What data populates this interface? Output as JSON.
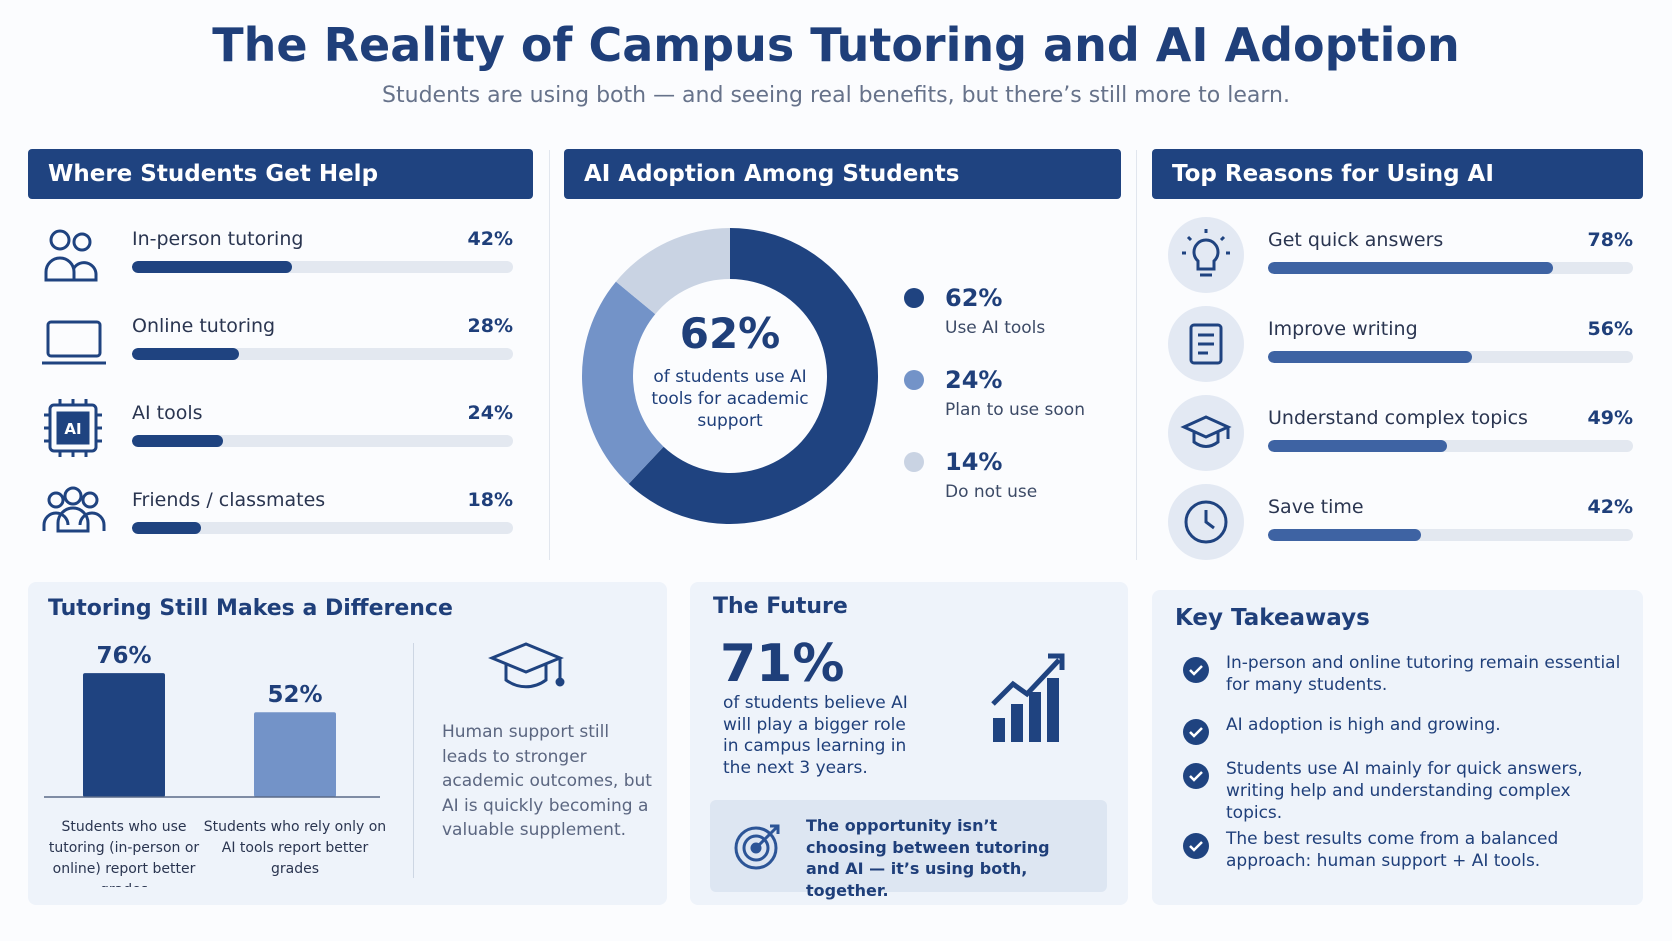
{
  "title": "The Reality of Campus Tutoring and AI Adoption",
  "subtitle": "Students are using both — and seeing real benefits, but there’s still more to learn.",
  "chart_data": [
    {
      "type": "hbar",
      "title": "Where Students Get Help",
      "categories": [
        "In-person tutoring",
        "Online tutoring",
        "AI tools",
        "Friends / classmates"
      ],
      "values": [
        42,
        28,
        24,
        18
      ],
      "value_labels": [
        "42%",
        "28%",
        "24%",
        "18%"
      ],
      "xlim": [
        0,
        100
      ],
      "color": "#1f4380"
    },
    {
      "type": "donut",
      "title": "AI Adoption Among Students",
      "categories": [
        "Use AI tools",
        "Plan to use soon",
        "Do not use"
      ],
      "values": [
        62,
        24,
        14
      ],
      "value_labels": [
        "62%",
        "24%",
        "14%"
      ],
      "colors": [
        "#1f4380",
        "#7393c8",
        "#c9d3e3"
      ],
      "center_text": "of students use AI tools for academic support"
    },
    {
      "type": "hbar",
      "title": "Top Reasons for Using AI",
      "categories": [
        "Get quick answers",
        "Improve writing",
        "Understand complex topics",
        "Save time"
      ],
      "values": [
        78,
        56,
        49,
        42
      ],
      "value_labels": [
        "78%",
        "56%",
        "49%",
        "42%"
      ],
      "xlim": [
        0,
        100
      ],
      "color": "#3e63a3"
    },
    {
      "type": "bar",
      "title": "Tutoring Still Makes a Difference",
      "categories": [
        "Students who use tutoring (in-person or online) report better grades",
        "Students who rely only on AI tools report better grades"
      ],
      "values": [
        76,
        52
      ],
      "value_labels": [
        "76%",
        "52%"
      ],
      "ylim": [
        0,
        100
      ],
      "colors": [
        "#1f4380",
        "#7393c8"
      ],
      "note": "Human support still leads to stronger academic outcomes, but AI is quickly becoming a valuable supplement."
    }
  ],
  "future": {
    "title": "The Future",
    "stat": "71%",
    "text": "of students believe AI will play a bigger role in campus learning in the next 3 years.",
    "callout": "The opportunity isn’t choosing between tutoring and AI — it’s using both, together."
  },
  "takeaways": {
    "title": "Key Takeaways",
    "items": [
      "In-person and online tutoring remain essential for many students.",
      "AI adoption is high and growing.",
      "Students use AI mainly for quick answers, writing help and understanding complex topics.",
      "The best results come from a balanced approach: human support + AI tools."
    ]
  }
}
